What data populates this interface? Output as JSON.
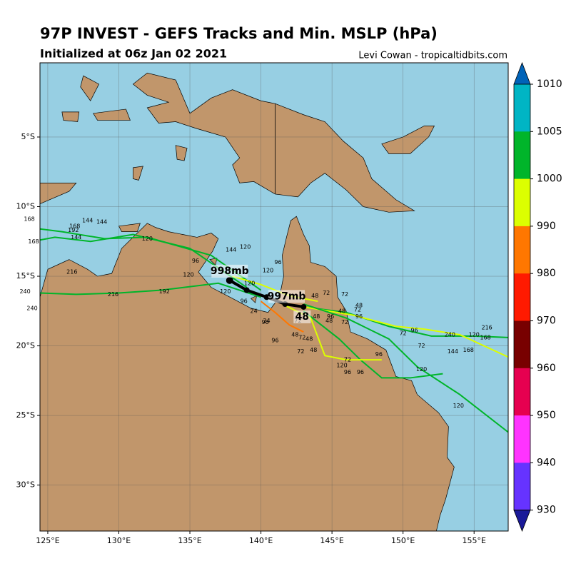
{
  "chart_data": {
    "type": "track-map",
    "title": "97P INVEST - GEFS Tracks and Min. MSLP (hPa)",
    "subtitle": "Initialized at 06z Jan 02 2021",
    "credit": "Levi Cowan - tropicaltidbits.com",
    "xlim": [
      124.45,
      157.4
    ],
    "ylim": [
      -33.3,
      0.33
    ],
    "xticks": [
      {
        "value": 125,
        "label": "125°E"
      },
      {
        "value": 130,
        "label": "130°E"
      },
      {
        "value": 135,
        "label": "135°E"
      },
      {
        "value": 140,
        "label": "140°E"
      },
      {
        "value": 145,
        "label": "145°E"
      },
      {
        "value": 150,
        "label": "150°E"
      },
      {
        "value": 155,
        "label": "155°E"
      }
    ],
    "yticks": [
      {
        "value": -5,
        "label": "5°S"
      },
      {
        "value": -10,
        "label": "10°S"
      },
      {
        "value": -15,
        "label": "15°S"
      },
      {
        "value": -20,
        "label": "20°S"
      },
      {
        "value": -25,
        "label": "25°S"
      },
      {
        "value": -30,
        "label": "30°S"
      }
    ],
    "grid": true,
    "colorbar": {
      "ticks": [
        1010,
        1005,
        1000,
        990,
        980,
        970,
        960,
        950,
        940,
        930
      ],
      "colors": [
        "#00b5c4",
        "#00b52a",
        "#dcff00",
        "#ff7700",
        "#ff1a00",
        "#780000",
        "#e60050",
        "#ff33ff",
        "#6633ff"
      ],
      "extend_colors": [
        "#0063b8",
        "#1a1a99"
      ]
    },
    "mean_track": {
      "name": "ensemble mean",
      "color": "#000000",
      "lon": [
        137.8,
        139.0,
        140.4,
        141.7,
        143.0
      ],
      "lat": [
        -15.3,
        -16.0,
        -16.5,
        -17.0,
        -17.2
      ]
    },
    "annotations": [
      {
        "text": "998mb",
        "lon": 137.8,
        "lat": -15.3
      },
      {
        "text": "997mb",
        "lon": 140.4,
        "lat": -16.5
      },
      {
        "text": "48",
        "lon": 143.0,
        "lat": -17.2
      }
    ],
    "tracks": [
      {
        "color": "#00b52a",
        "lon": [
          143.0,
          146.0,
          149.0,
          152.0,
          155.0,
          157.4
        ],
        "lat": [
          -17.2,
          -17.6,
          -18.6,
          -19.3,
          -19.3,
          -19.4
        ]
      },
      {
        "color": "#dcff00",
        "lon": [
          143.0,
          146.5,
          149.5,
          151.5,
          154.0,
          157.4
        ],
        "lat": [
          -17.2,
          -17.8,
          -18.6,
          -18.8,
          -19.2,
          -20.8
        ]
      },
      {
        "color": "#00b52a",
        "lon": [
          140.0,
          137.0,
          133.0,
          130.0,
          127.0,
          124.45
        ],
        "lat": [
          -16.5,
          -15.5,
          -16.0,
          -16.2,
          -16.3,
          -16.2
        ]
      },
      {
        "color": "#00b52a",
        "lon": [
          140.0,
          136.5,
          132.0,
          129.0,
          126.0,
          124.45
        ],
        "lat": [
          -16.0,
          -13.5,
          -12.2,
          -12.3,
          -11.8,
          -11.6
        ]
      },
      {
        "color": "#00b52a",
        "lon": [
          139.0,
          135.0,
          131.0,
          128.0,
          125.5,
          124.45
        ],
        "lat": [
          -15.8,
          -13.0,
          -12.0,
          -12.5,
          -12.2,
          -12.4
        ]
      },
      {
        "color": "#00b52a",
        "lon": [
          143.0,
          145.5,
          147.0,
          148.5,
          150.5,
          152.8
        ],
        "lat": [
          -17.5,
          -19.5,
          -21.0,
          -22.3,
          -22.3,
          -22.0
        ]
      },
      {
        "color": "#00b52a",
        "lon": [
          143.0,
          146.0,
          149.0,
          151.0,
          154.0,
          157.4
        ],
        "lat": [
          -17.0,
          -18.0,
          -19.5,
          -21.5,
          -23.5,
          -26.2
        ]
      },
      {
        "color": "#dcff00",
        "lon": [
          141.5,
          143.5,
          144.5,
          146.0,
          148.5
        ],
        "lat": [
          -17.0,
          -18.0,
          -20.7,
          -21.0,
          -21.0
        ]
      },
      {
        "color": "#ff7700",
        "lon": [
          140.0,
          141.0,
          142.0,
          143.0
        ],
        "lat": [
          -16.8,
          -17.6,
          -18.5,
          -19.0
        ]
      },
      {
        "color": "#dcff00",
        "lon": [
          138.0,
          140.0,
          142.0,
          144.0
        ],
        "lat": [
          -15.0,
          -15.6,
          -16.4,
          -16.8
        ]
      }
    ],
    "hour_labels": [
      {
        "label": "120",
        "lon": 138.9,
        "lat": -12.9
      },
      {
        "label": "144",
        "lon": 137.9,
        "lat": -13.1
      },
      {
        "label": "96",
        "lon": 141.2,
        "lat": -14.0
      },
      {
        "label": "120",
        "lon": 140.5,
        "lat": -14.6
      },
      {
        "label": "120",
        "lon": 134.9,
        "lat": -14.9
      },
      {
        "label": "96",
        "lon": 135.4,
        "lat": -13.9
      },
      {
        "label": "144",
        "lon": 127.8,
        "lat": -11.0
      },
      {
        "label": "144",
        "lon": 128.8,
        "lat": -11.1
      },
      {
        "label": "192",
        "lon": 126.8,
        "lat": -11.7
      },
      {
        "label": "168",
        "lon": 126.9,
        "lat": -11.4
      },
      {
        "label": "144",
        "lon": 127.0,
        "lat": -12.2
      },
      {
        "label": "120",
        "lon": 132.0,
        "lat": -12.3
      },
      {
        "label": "216",
        "lon": 126.7,
        "lat": -14.7
      },
      {
        "label": "216",
        "lon": 129.6,
        "lat": -16.3
      },
      {
        "label": "192",
        "lon": 133.2,
        "lat": -16.1
      },
      {
        "label": "72",
        "lon": 144.6,
        "lat": -16.2
      },
      {
        "label": "48",
        "lon": 143.8,
        "lat": -16.4
      },
      {
        "label": "72",
        "lon": 145.9,
        "lat": -16.3
      },
      {
        "label": "48",
        "lon": 146.9,
        "lat": -17.1
      },
      {
        "label": "96",
        "lon": 146.9,
        "lat": -17.9
      },
      {
        "label": "72",
        "lon": 146.8,
        "lat": -17.4
      },
      {
        "label": "96",
        "lon": 150.8,
        "lat": -18.9
      },
      {
        "label": "120",
        "lon": 155.0,
        "lat": -19.2
      },
      {
        "label": "72",
        "lon": 150.0,
        "lat": -19.1
      },
      {
        "label": "72",
        "lon": 151.3,
        "lat": -20.0
      },
      {
        "label": "144",
        "lon": 153.5,
        "lat": -20.4
      },
      {
        "label": "168",
        "lon": 154.6,
        "lat": -20.3
      },
      {
        "label": "120",
        "lon": 151.3,
        "lat": -21.7
      },
      {
        "label": "120",
        "lon": 153.9,
        "lat": -24.3
      },
      {
        "label": "96",
        "lon": 148.3,
        "lat": -20.6
      },
      {
        "label": "72",
        "lon": 146.1,
        "lat": -21.0
      },
      {
        "label": "120",
        "lon": 145.7,
        "lat": -21.4
      },
      {
        "label": "96",
        "lon": 146.1,
        "lat": -21.9
      },
      {
        "label": "96",
        "lon": 147.0,
        "lat": -21.9
      },
      {
        "label": "48",
        "lon": 143.7,
        "lat": -20.3
      },
      {
        "label": "72",
        "lon": 142.8,
        "lat": -20.4
      },
      {
        "label": "48",
        "lon": 142.4,
        "lat": -19.2
      },
      {
        "label": "72",
        "lon": 142.9,
        "lat": -19.4
      },
      {
        "label": "48",
        "lon": 143.4,
        "lat": -19.5
      },
      {
        "label": "96",
        "lon": 141.0,
        "lat": -19.6
      },
      {
        "label": "24",
        "lon": 140.4,
        "lat": -18.2
      },
      {
        "label": "96",
        "lon": 140.3,
        "lat": -18.3
      },
      {
        "label": "24",
        "lon": 139.5,
        "lat": -17.5
      },
      {
        "label": "72",
        "lon": 142.6,
        "lat": -18.2
      },
      {
        "label": "48",
        "lon": 143.9,
        "lat": -17.9
      },
      {
        "label": "96",
        "lon": 144.9,
        "lat": -17.9
      },
      {
        "label": "48",
        "lon": 144.8,
        "lat": -18.2
      },
      {
        "label": "72",
        "lon": 145.9,
        "lat": -18.3
      },
      {
        "label": "48",
        "lon": 145.7,
        "lat": -17.5
      },
      {
        "label": "120",
        "lon": 139.2,
        "lat": -15.5
      },
      {
        "label": "120",
        "lon": 137.5,
        "lat": -16.1
      },
      {
        "label": "96",
        "lon": 138.8,
        "lat": -16.8
      },
      {
        "label": "168",
        "lon": 123.7,
        "lat": -10.9
      },
      {
        "label": "168",
        "lon": 124.0,
        "lat": -12.5
      },
      {
        "label": "240",
        "lon": 123.4,
        "lat": -16.1
      },
      {
        "label": "240",
        "lon": 123.9,
        "lat": -17.3
      },
      {
        "label": "216",
        "lon": 155.9,
        "lat": -18.7
      },
      {
        "label": "240",
        "lon": 153.3,
        "lat": -19.2
      },
      {
        "label": "168",
        "lon": 155.8,
        "lat": -19.4
      }
    ]
  }
}
